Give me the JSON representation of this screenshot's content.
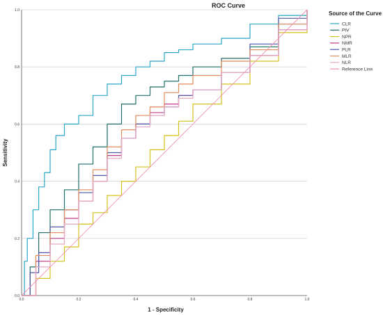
{
  "chart_data": {
    "type": "line",
    "title": "ROC Curve",
    "xlabel": "1 - Specificity",
    "ylabel": "Sensitivity",
    "xlim": [
      0,
      1
    ],
    "ylim": [
      0,
      1
    ],
    "x_ticks": [
      "0.0",
      "0.2",
      "0.4",
      "0.6",
      "0.8",
      "1.0"
    ],
    "y_ticks": [
      "0.0",
      "0.2",
      "0.4",
      "0.6",
      "0.8",
      "1.0"
    ],
    "grid": "horizontal",
    "legend_title": "Source of the Curve",
    "legend_position": "right",
    "series": [
      {
        "name": "CLR",
        "color": "#29a5c8",
        "x": [
          0,
          0.01,
          0.02,
          0.04,
          0.06,
          0.08,
          0.1,
          0.12,
          0.15,
          0.2,
          0.25,
          0.3,
          0.35,
          0.4,
          0.45,
          0.5,
          0.55,
          0.6,
          0.7,
          0.8,
          0.9,
          1.0
        ],
        "y": [
          0,
          0.12,
          0.2,
          0.3,
          0.38,
          0.43,
          0.51,
          0.56,
          0.6,
          0.63,
          0.7,
          0.74,
          0.77,
          0.8,
          0.82,
          0.85,
          0.86,
          0.88,
          0.9,
          0.95,
          0.98,
          1.0
        ]
      },
      {
        "name": "PIV",
        "color": "#1e6e66",
        "x": [
          0,
          0.03,
          0.06,
          0.1,
          0.15,
          0.2,
          0.25,
          0.3,
          0.35,
          0.4,
          0.45,
          0.5,
          0.55,
          0.6,
          0.7,
          0.8,
          0.9,
          1.0
        ],
        "y": [
          0,
          0.1,
          0.22,
          0.3,
          0.37,
          0.46,
          0.52,
          0.6,
          0.67,
          0.7,
          0.73,
          0.75,
          0.77,
          0.8,
          0.83,
          0.87,
          0.95,
          1.0
        ]
      },
      {
        "name": "NPR",
        "color": "#d4c21a",
        "x": [
          0,
          0.05,
          0.1,
          0.15,
          0.2,
          0.25,
          0.3,
          0.35,
          0.4,
          0.45,
          0.5,
          0.55,
          0.6,
          0.7,
          0.8,
          0.9,
          1.0
        ],
        "y": [
          0,
          0.06,
          0.12,
          0.17,
          0.25,
          0.29,
          0.35,
          0.4,
          0.45,
          0.51,
          0.56,
          0.61,
          0.67,
          0.74,
          0.82,
          0.92,
          1.0
        ]
      },
      {
        "name": "NMR",
        "color": "#c0368e",
        "x": [
          0,
          0.05,
          0.1,
          0.15,
          0.2,
          0.25,
          0.3,
          0.35,
          0.4,
          0.45,
          0.5,
          0.55,
          0.6,
          0.7,
          0.8,
          0.9,
          1.0
        ],
        "y": [
          0,
          0.12,
          0.2,
          0.27,
          0.33,
          0.4,
          0.49,
          0.55,
          0.6,
          0.64,
          0.67,
          0.7,
          0.72,
          0.78,
          0.84,
          0.93,
          1.0
        ]
      },
      {
        "name": "PLR",
        "color": "#4f57a8",
        "x": [
          0,
          0.03,
          0.06,
          0.1,
          0.15,
          0.2,
          0.25,
          0.3,
          0.35,
          0.4,
          0.45,
          0.5,
          0.55,
          0.6,
          0.7,
          0.8,
          0.9,
          1.0
        ],
        "y": [
          0,
          0.08,
          0.15,
          0.24,
          0.3,
          0.36,
          0.42,
          0.5,
          0.55,
          0.6,
          0.63,
          0.66,
          0.7,
          0.72,
          0.78,
          0.88,
          0.97,
          1.0
        ]
      },
      {
        "name": "MLR",
        "color": "#e0895a",
        "x": [
          0,
          0.05,
          0.1,
          0.15,
          0.2,
          0.25,
          0.3,
          0.35,
          0.4,
          0.45,
          0.5,
          0.55,
          0.6,
          0.7,
          0.8,
          0.9,
          1.0
        ],
        "y": [
          0,
          0.14,
          0.22,
          0.3,
          0.37,
          0.44,
          0.52,
          0.58,
          0.63,
          0.66,
          0.71,
          0.74,
          0.77,
          0.82,
          0.86,
          0.95,
          1.0
        ]
      },
      {
        "name": "NLR",
        "color": "#e7a9c4",
        "x": [
          0,
          0.05,
          0.1,
          0.15,
          0.2,
          0.25,
          0.3,
          0.35,
          0.4,
          0.45,
          0.5,
          0.55,
          0.6,
          0.7,
          0.8,
          0.9,
          1.0
        ],
        "y": [
          0,
          0.1,
          0.18,
          0.25,
          0.33,
          0.4,
          0.48,
          0.55,
          0.59,
          0.63,
          0.66,
          0.69,
          0.72,
          0.78,
          0.84,
          0.93,
          1.0
        ]
      },
      {
        "name": "Reference Line",
        "color": "#f08fb0",
        "x": [
          0,
          1
        ],
        "y": [
          0,
          1
        ]
      }
    ]
  }
}
